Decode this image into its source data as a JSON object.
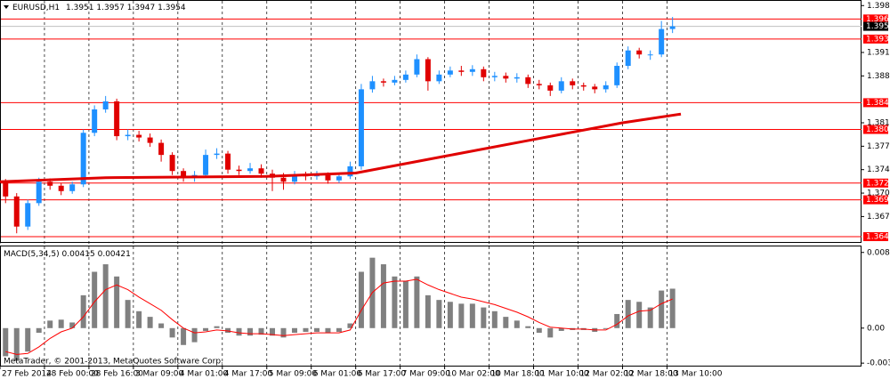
{
  "header": {
    "symbol": "EURUSD,H1",
    "ohlc": [
      1.3951,
      1.3957,
      1.3947,
      1.3954
    ]
  },
  "copyright": "MetaTrader, © 2001-2013, MetaQuotes Software Corp.",
  "chart_data": [
    {
      "type": "candlestick",
      "x": [
        2,
        6,
        10,
        14,
        18,
        22,
        26,
        30,
        34,
        38,
        42,
        46,
        50,
        54,
        58,
        62,
        66,
        70,
        74,
        78,
        82,
        86,
        90,
        94,
        98,
        102,
        106,
        110,
        114,
        118,
        122,
        126,
        130,
        134,
        138,
        142,
        146,
        150,
        154,
        158,
        162,
        166,
        170,
        174,
        178,
        182,
        186,
        190,
        194,
        198,
        202,
        206,
        210,
        214,
        218,
        222,
        226,
        230,
        234,
        238,
        242
      ],
      "open": [
        1.3722,
        1.37,
        1.3655,
        1.369,
        1.3722,
        1.3716,
        1.3708,
        1.3718,
        1.3795,
        1.383,
        1.3842,
        1.379,
        1.3792,
        1.3788,
        1.378,
        1.3762,
        1.3738,
        1.3728,
        1.3732,
        1.3762,
        1.3764,
        1.374,
        1.3738,
        1.3742,
        1.3734,
        1.3728,
        1.3722,
        1.3732,
        1.373,
        1.3732,
        1.3724,
        1.373,
        1.3745,
        1.386,
        1.3872,
        1.387,
        1.3874,
        1.3882,
        1.3905,
        1.3872,
        1.3882,
        1.3888,
        1.3886,
        1.389,
        1.3878,
        1.388,
        1.3876,
        1.3878,
        1.3868,
        1.3866,
        1.3858,
        1.3872,
        1.3866,
        1.3864,
        1.386,
        1.3866,
        1.3895,
        1.3918,
        1.3912,
        1.3912,
        1.395
      ],
      "high": [
        1.3726,
        1.3705,
        1.3695,
        1.3728,
        1.3727,
        1.372,
        1.3722,
        1.38,
        1.3836,
        1.385,
        1.3846,
        1.38,
        1.3798,
        1.3794,
        1.3785,
        1.3766,
        1.3742,
        1.3738,
        1.377,
        1.3772,
        1.3768,
        1.3746,
        1.375,
        1.3748,
        1.374,
        1.3735,
        1.3738,
        1.3737,
        1.3738,
        1.3736,
        1.3734,
        1.3752,
        1.3868,
        1.388,
        1.3876,
        1.388,
        1.3888,
        1.3912,
        1.3908,
        1.3888,
        1.3894,
        1.3895,
        1.3896,
        1.3894,
        1.3886,
        1.3885,
        1.3884,
        1.3882,
        1.3874,
        1.387,
        1.3878,
        1.3876,
        1.387,
        1.3868,
        1.3872,
        1.39,
        1.3924,
        1.3922,
        1.3918,
        1.3962,
        1.3968
      ],
      "low": [
        1.369,
        1.3645,
        1.365,
        1.3686,
        1.371,
        1.3702,
        1.3704,
        1.3714,
        1.379,
        1.3825,
        1.3784,
        1.3784,
        1.3782,
        1.3774,
        1.3752,
        1.3732,
        1.3722,
        1.3722,
        1.3728,
        1.3756,
        1.3734,
        1.3732,
        1.3734,
        1.3728,
        1.3708,
        1.371,
        1.3718,
        1.3724,
        1.3725,
        1.3719,
        1.372,
        1.3726,
        1.374,
        1.3855,
        1.3864,
        1.3866,
        1.387,
        1.3878,
        1.3858,
        1.3868,
        1.3878,
        1.388,
        1.388,
        1.3872,
        1.3872,
        1.387,
        1.387,
        1.3862,
        1.386,
        1.385,
        1.3854,
        1.386,
        1.3858,
        1.3854,
        1.3855,
        1.3862,
        1.389,
        1.3906,
        1.3904,
        1.3908,
        1.3944
      ],
      "close": [
        1.37,
        1.3655,
        1.369,
        1.3722,
        1.3716,
        1.3708,
        1.3718,
        1.3795,
        1.383,
        1.3842,
        1.379,
        1.3792,
        1.3788,
        1.378,
        1.3762,
        1.3738,
        1.3728,
        1.3732,
        1.3762,
        1.3764,
        1.374,
        1.3738,
        1.3742,
        1.3734,
        1.3728,
        1.3722,
        1.3732,
        1.373,
        1.3732,
        1.3724,
        1.373,
        1.3745,
        1.386,
        1.3872,
        1.387,
        1.3874,
        1.3882,
        1.3905,
        1.3872,
        1.3882,
        1.3888,
        1.3886,
        1.389,
        1.3878,
        1.388,
        1.3876,
        1.3878,
        1.3868,
        1.3866,
        1.3858,
        1.3872,
        1.3866,
        1.3864,
        1.386,
        1.3866,
        1.3895,
        1.3918,
        1.3912,
        1.3912,
        1.395,
        1.3954
      ],
      "up_color": "#1e90ff",
      "down_color": "#e00000",
      "xlim": [
        0,
        310
      ],
      "ylim": [
        1.3632,
        1.3992
      ],
      "yticks": [
        1.3985,
        1.3915,
        {
          "value": 1.388,
          "label": "1.3880"
        },
        {
          "value": 1.381,
          "label": "1.3810"
        },
        1.3775,
        {
          "value": 1.374,
          "label": "1.3740"
        },
        1.3705,
        {
          "value": 1.367,
          "label": "1.3670"
        }
      ],
      "xticks": [
        {
          "value": 0,
          "label": "27 Feb 2014"
        },
        {
          "value": 16,
          "label": "28 Feb 00:00"
        },
        {
          "value": 32,
          "label": "28 Feb 16:00"
        },
        {
          "value": 48,
          "label": "3 Mar 09:00"
        },
        {
          "value": 64,
          "label": "4 Mar 01:00"
        },
        {
          "value": 80,
          "label": "4 Mar 17:00"
        },
        {
          "value": 96,
          "label": "5 Mar 09:00"
        },
        {
          "value": 112,
          "label": "6 Mar 01:00"
        },
        {
          "value": 128,
          "label": "6 Mar 17:00"
        },
        {
          "value": 144,
          "label": "7 Mar 09:00"
        },
        {
          "value": 160,
          "label": "10 Mar 02:00"
        },
        {
          "value": 176,
          "label": "10 Mar 18:00"
        },
        {
          "value": 192,
          "label": "11 Mar 10:00"
        },
        {
          "value": 208,
          "label": "12 Mar 02:00"
        },
        {
          "value": 224,
          "label": "12 Mar 18:00"
        },
        {
          "value": 240,
          "label": "13 Mar 10:00"
        }
      ],
      "grid": true,
      "moving_average": {
        "color": "#e00000",
        "x": [
          0,
          38,
          96,
          128,
          160,
          192,
          224,
          245
        ],
        "values": [
          1.3722,
          1.3728,
          1.373,
          1.3735,
          1.376,
          1.3785,
          1.381,
          1.3823
        ]
      },
      "levels": [
        1.3965,
        1.3935,
        {
          "value": 1.384,
          "label": "1.3840"
        },
        {
          "value": 1.38,
          "label": "1.3800"
        },
        {
          "value": 1.372,
          "label": "1.3720"
        },
        1.3695,
        {
          "value": 1.364,
          "label": "1.3640"
        }
      ],
      "level_color": "#ff0000",
      "last_price": 1.3954
    },
    {
      "type": "macd",
      "title": "MACD(5,34,5)",
      "readout": [
        0.00415,
        0.00421
      ],
      "x": [
        2,
        6,
        10,
        14,
        18,
        22,
        26,
        30,
        34,
        38,
        42,
        46,
        50,
        54,
        58,
        62,
        66,
        70,
        74,
        78,
        82,
        86,
        90,
        94,
        98,
        102,
        106,
        110,
        114,
        118,
        122,
        126,
        130,
        134,
        138,
        142,
        146,
        150,
        154,
        158,
        162,
        166,
        170,
        174,
        178,
        182,
        186,
        190,
        194,
        198,
        202,
        206,
        210,
        214,
        218,
        222,
        226,
        230,
        234,
        238,
        242
      ],
      "histogram": {
        "color": "#808080",
        "values": [
          -0.003,
          -0.0035,
          -0.0025,
          -0.0005,
          0.0008,
          0.0009,
          0.0006,
          0.0035,
          0.006,
          0.0068,
          0.0055,
          0.003,
          0.0018,
          0.0012,
          0.0005,
          -0.001,
          -0.0018,
          -0.0015,
          -0.0003,
          0.0002,
          -0.0005,
          -0.0008,
          -0.0008,
          -0.0007,
          -0.0008,
          -0.001,
          -0.0005,
          -0.0004,
          -0.0004,
          -0.0005,
          -0.0004,
          0.0005,
          0.006,
          0.0075,
          0.0068,
          0.0055,
          0.005,
          0.0055,
          0.0035,
          0.003,
          0.0028,
          0.0026,
          0.0026,
          0.0022,
          0.0018,
          0.0012,
          0.0008,
          0.0002,
          -0.0005,
          -0.001,
          -0.0003,
          -0.0002,
          -0.0002,
          -0.0004,
          -0.0001,
          0.0015,
          0.003,
          0.0028,
          0.0022,
          0.004,
          0.0042
        ]
      },
      "signal": {
        "color": "#ff0000",
        "values": [
          -0.0025,
          -0.0028,
          -0.0027,
          -0.002,
          -0.0011,
          -0.0004,
          0,
          0.0012,
          0.0028,
          0.0041,
          0.0046,
          0.0041,
          0.0033,
          0.0026,
          0.0019,
          0.0009,
          0,
          -0.0005,
          -0.0004,
          -0.0002,
          -0.0003,
          -0.0005,
          -0.0006,
          -0.0006,
          -0.0007,
          -0.0008,
          -0.0007,
          -0.0006,
          -0.0005,
          -0.0005,
          -0.0005,
          -0.0002,
          0.0019,
          0.0038,
          0.0048,
          0.005,
          0.005,
          0.0052,
          0.0046,
          0.0041,
          0.0037,
          0.0033,
          0.0031,
          0.0028,
          0.0025,
          0.0021,
          0.0017,
          0.0012,
          0.0006,
          0.0001,
          0,
          -0.0001,
          -0.0001,
          -0.0002,
          -0.0002,
          0.0004,
          0.0013,
          0.0018,
          0.0019,
          0.0026,
          0.0031
        ]
      },
      "ylim": [
        -0.004,
        0.0087
      ],
      "yticks": [
        0.00806,
        {
          "value": 0,
          "label": "0.00"
        },
        -0.00373
      ]
    }
  ]
}
